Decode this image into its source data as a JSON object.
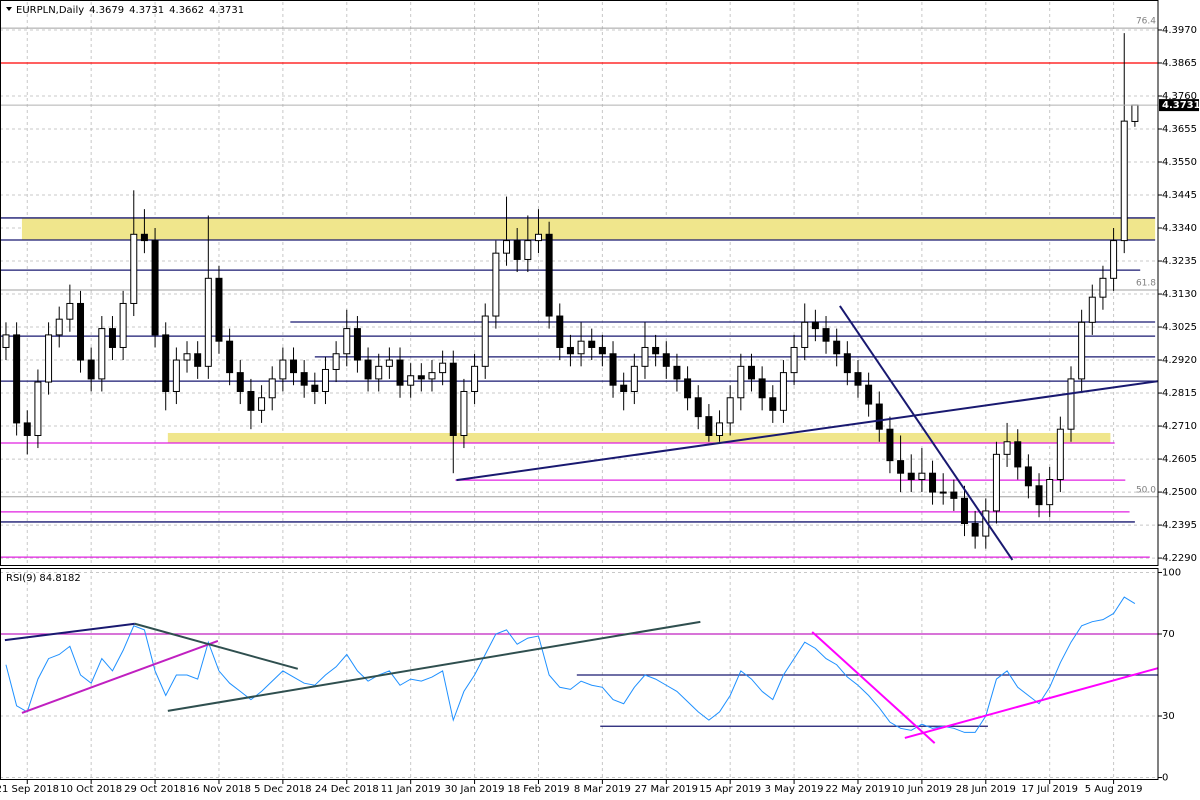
{
  "chart_data": [
    {
      "type": "candlestick",
      "title": "EURPLN,Daily",
      "categories": [
        null,
        null,
        "21 Sep 2018",
        null,
        null,
        null,
        null,
        null,
        "10 Oct 2018",
        null,
        null,
        null,
        null,
        null,
        "29 Oct 2018",
        null,
        null,
        null,
        null,
        null,
        "16 Nov 2018",
        null,
        null,
        null,
        null,
        null,
        "5 Dec 2018",
        null,
        null,
        null,
        null,
        null,
        "24 Dec 2018",
        null,
        null,
        null,
        null,
        null,
        "11 Jan 2019",
        null,
        null,
        null,
        null,
        null,
        "30 Jan 2019",
        null,
        null,
        null,
        null,
        null,
        "18 Feb 2019",
        null,
        null,
        null,
        null,
        null,
        "8 Mar 2019",
        null,
        null,
        null,
        null,
        null,
        "27 Mar 2019",
        null,
        null,
        null,
        null,
        null,
        "15 Apr 2019",
        null,
        null,
        null,
        null,
        null,
        "3 May 2019",
        null,
        null,
        null,
        null,
        null,
        "22 May 2019",
        null,
        null,
        null,
        null,
        null,
        "10 Jun 2019",
        null,
        null,
        null,
        null,
        null,
        "28 Jun 2019",
        null,
        null,
        null,
        null,
        null,
        "17 Jul 2019",
        null,
        null,
        null,
        null,
        null,
        "5 Aug 2019",
        null,
        null
      ],
      "open": [
        4.296,
        4.3,
        4.272,
        4.268,
        4.285,
        4.3,
        4.305,
        4.31,
        4.292,
        4.286,
        4.302,
        4.296,
        4.31,
        4.332,
        4.33,
        4.3,
        4.282,
        4.292,
        4.294,
        4.29,
        4.318,
        4.298,
        4.288,
        4.282,
        4.276,
        4.28,
        4.286,
        4.292,
        4.288,
        4.284,
        4.282,
        4.289,
        4.294,
        4.302,
        4.292,
        4.286,
        4.29,
        4.292,
        4.284,
        4.287,
        4.286,
        4.288,
        4.291,
        4.268,
        4.282,
        4.29,
        4.306,
        4.326,
        4.33,
        4.324,
        4.33,
        4.332,
        4.306,
        4.296,
        4.294,
        4.298,
        4.296,
        4.294,
        4.284,
        4.282,
        4.29,
        4.296,
        4.294,
        4.29,
        4.286,
        4.28,
        4.274,
        4.268,
        4.272,
        4.28,
        4.29,
        4.286,
        4.28,
        4.276,
        4.288,
        4.296,
        4.304,
        4.302,
        4.298,
        4.294,
        4.288,
        4.284,
        4.278,
        4.27,
        4.26,
        4.256,
        4.254,
        4.256,
        4.25,
        4.25,
        4.248,
        4.24,
        4.236,
        4.244,
        4.262,
        4.266,
        4.258,
        4.252,
        4.246,
        4.254,
        4.27,
        4.286,
        4.304,
        4.312,
        4.318,
        4.33,
        4.3679
      ],
      "high": [
        4.304,
        4.304,
        4.276,
        4.289,
        4.304,
        4.309,
        4.316,
        4.314,
        4.296,
        4.306,
        4.306,
        4.314,
        4.346,
        4.34,
        4.334,
        4.304,
        4.296,
        4.298,
        4.298,
        4.338,
        4.322,
        4.302,
        4.292,
        4.286,
        4.284,
        4.29,
        4.296,
        4.296,
        4.292,
        4.288,
        4.293,
        4.298,
        4.308,
        4.306,
        4.296,
        4.294,
        4.296,
        4.296,
        4.291,
        4.291,
        4.292,
        4.295,
        4.295,
        4.286,
        4.294,
        4.31,
        4.33,
        4.344,
        4.334,
        4.338,
        4.34,
        4.336,
        4.31,
        4.3,
        4.304,
        4.302,
        4.3,
        4.298,
        4.288,
        4.294,
        4.304,
        4.3,
        4.298,
        4.294,
        4.29,
        4.284,
        4.278,
        4.276,
        4.284,
        4.294,
        4.294,
        4.29,
        4.284,
        4.292,
        4.3,
        4.31,
        4.308,
        4.306,
        4.302,
        4.298,
        4.292,
        4.288,
        4.282,
        4.274,
        4.268,
        4.262,
        4.264,
        4.26,
        4.256,
        4.254,
        4.252,
        4.244,
        4.248,
        4.266,
        4.272,
        4.27,
        4.262,
        4.256,
        4.258,
        4.274,
        4.29,
        4.308,
        4.316,
        4.322,
        4.334,
        4.396,
        4.3731
      ],
      "low": [
        4.292,
        4.268,
        4.262,
        4.264,
        4.281,
        4.296,
        4.301,
        4.288,
        4.282,
        4.282,
        4.292,
        4.292,
        4.306,
        4.326,
        4.296,
        4.276,
        4.278,
        4.288,
        4.286,
        4.286,
        4.294,
        4.284,
        4.278,
        4.27,
        4.272,
        4.276,
        4.282,
        4.284,
        4.28,
        4.278,
        4.278,
        4.285,
        4.29,
        4.288,
        4.282,
        4.282,
        4.286,
        4.28,
        4.28,
        4.282,
        4.282,
        4.284,
        4.256,
        4.264,
        4.278,
        4.286,
        4.302,
        4.322,
        4.32,
        4.32,
        4.326,
        4.302,
        4.292,
        4.29,
        4.29,
        4.292,
        4.29,
        4.28,
        4.276,
        4.278,
        4.286,
        4.29,
        4.286,
        4.282,
        4.276,
        4.27,
        4.266,
        4.266,
        4.268,
        4.276,
        4.282,
        4.276,
        4.272,
        4.272,
        4.284,
        4.292,
        4.298,
        4.294,
        4.29,
        4.284,
        4.28,
        4.274,
        4.266,
        4.256,
        4.25,
        4.25,
        4.25,
        4.246,
        4.246,
        4.244,
        4.236,
        4.232,
        4.232,
        4.24,
        4.258,
        4.254,
        4.248,
        4.242,
        4.242,
        4.25,
        4.266,
        4.282,
        4.3,
        4.308,
        4.314,
        4.326,
        4.3662
      ],
      "close": [
        4.3,
        4.272,
        4.268,
        4.285,
        4.3,
        4.305,
        4.31,
        4.292,
        4.286,
        4.302,
        4.296,
        4.31,
        4.332,
        4.33,
        4.3,
        4.282,
        4.292,
        4.294,
        4.29,
        4.318,
        4.298,
        4.288,
        4.282,
        4.276,
        4.28,
        4.286,
        4.292,
        4.288,
        4.284,
        4.282,
        4.289,
        4.294,
        4.302,
        4.292,
        4.286,
        4.29,
        4.292,
        4.284,
        4.287,
        4.286,
        4.288,
        4.291,
        4.268,
        4.282,
        4.29,
        4.306,
        4.326,
        4.33,
        4.324,
        4.33,
        4.332,
        4.306,
        4.296,
        4.294,
        4.298,
        4.296,
        4.294,
        4.284,
        4.282,
        4.29,
        4.296,
        4.294,
        4.29,
        4.286,
        4.28,
        4.274,
        4.268,
        4.272,
        4.28,
        4.29,
        4.286,
        4.28,
        4.276,
        4.288,
        4.296,
        4.304,
        4.302,
        4.298,
        4.294,
        4.288,
        4.284,
        4.278,
        4.27,
        4.26,
        4.256,
        4.254,
        4.256,
        4.25,
        4.25,
        4.248,
        4.24,
        4.236,
        4.244,
        4.262,
        4.266,
        4.258,
        4.252,
        4.246,
        4.254,
        4.27,
        4.286,
        4.304,
        4.312,
        4.318,
        4.33,
        4.368,
        4.3731
      ],
      "up_color": "#ffffff",
      "down_color": "#000000",
      "wick_color": "#000000",
      "xlim": [
        -0.56,
        108.17
      ],
      "ylim": [
        4.2268,
        4.4059
      ],
      "yticks": [
        {
          "value": 4.397,
          "label": "4.3970"
        },
        4.3865,
        {
          "value": 4.376,
          "label": "4.3760"
        },
        4.3655,
        {
          "value": 4.355,
          "label": "4.3550"
        },
        4.3445,
        {
          "value": 4.334,
          "label": "4.3340"
        },
        4.3235,
        {
          "value": 4.313,
          "label": "4.3130"
        },
        4.3025,
        {
          "value": 4.292,
          "label": "4.2920"
        },
        4.2815,
        {
          "value": 4.271,
          "label": "4.2710"
        },
        4.2605,
        {
          "value": 4.25,
          "label": "4.2500"
        },
        4.2395,
        {
          "value": 4.229,
          "label": "4.2290"
        }
      ],
      "grid": true,
      "zones": [
        {
          "low": 4.3302,
          "high": 4.3372,
          "from": 1.5,
          "to": 107.9,
          "color": "#f0e68c"
        },
        {
          "low": 4.2656,
          "high": 4.2688,
          "from": 15.2,
          "to": 103.7,
          "color": "#f0e68c"
        }
      ],
      "levels": [
        {
          "value": 4.3865,
          "color": "#ff0000",
          "from": -0.56,
          "to": 108.17
        },
        {
          "value": 4.3372,
          "color": "#191970",
          "from": -0.56,
          "to": 107.9
        },
        {
          "value": 4.3302,
          "color": "#191970",
          "from": -0.56,
          "to": 107.9
        },
        {
          "value": 4.3206,
          "color": "#191970",
          "from": -0.56,
          "to": 106.5
        },
        {
          "value": 4.3041,
          "color": "#191970",
          "from": 26.7,
          "to": 107.9
        },
        {
          "value": 4.2996,
          "color": "#191970",
          "from": -0.56,
          "to": 107.9
        },
        {
          "value": 4.293,
          "color": "#191970",
          "from": 29,
          "to": 107.9
        },
        {
          "value": 4.2853,
          "color": "#191970",
          "from": -0.56,
          "to": 108.17
        },
        {
          "value": 4.2656,
          "color": "#e020e0",
          "from": -0.56,
          "to": 104.1
        },
        {
          "value": 4.2538,
          "color": "#e020e0",
          "from": 42.2,
          "to": 105.1
        },
        {
          "value": 4.2437,
          "color": "#e020e0",
          "from": -0.56,
          "to": 105.5
        },
        {
          "value": 4.2405,
          "color": "#191970",
          "from": -0.56,
          "to": 106
        },
        {
          "value": 4.2293,
          "color": "#e020e0",
          "from": -0.56,
          "to": 107.4
        }
      ],
      "fib_levels": [
        {
          "level": "76.4",
          "value": 4.3976
        },
        {
          "level": "61.8",
          "value": 4.3143
        },
        {
          "level": "50.0",
          "value": 4.2485
        }
      ],
      "trendlines": [
        {
          "points": [
            [
              42.3,
              4.2538
            ],
            [
              108.2,
              4.2853
            ]
          ],
          "color": "#191970"
        },
        {
          "points": [
            [
              78.3,
              4.3092
            ],
            [
              94.5,
              4.2284
            ]
          ],
          "color": "#191970"
        }
      ]
    },
    {
      "type": "line",
      "title": "RSI(9)",
      "color": "#1e90ff",
      "values": [
        55,
        35,
        32,
        48,
        58,
        60,
        64,
        50,
        46,
        58,
        52,
        62,
        74,
        72,
        52,
        40,
        50,
        50,
        48,
        66,
        52,
        46,
        42,
        38,
        42,
        47,
        52,
        49,
        46,
        45,
        50,
        54,
        60,
        52,
        47,
        50,
        52,
        45,
        48,
        47,
        49,
        52,
        28,
        42,
        50,
        60,
        70,
        72,
        65,
        68,
        69,
        50,
        44,
        43,
        47,
        45,
        44,
        38,
        36,
        44,
        50,
        48,
        45,
        42,
        37,
        32,
        28,
        32,
        40,
        52,
        48,
        42,
        38,
        50,
        58,
        66,
        63,
        58,
        55,
        49,
        45,
        40,
        34,
        27,
        24,
        23,
        26,
        24,
        25,
        24,
        22,
        22,
        30,
        48,
        52,
        44,
        40,
        36,
        44,
        56,
        66,
        74,
        76,
        77,
        80,
        88,
        84.8182
      ],
      "xlim": [
        -0.56,
        108.17
      ],
      "ylim": [
        -1.2,
        101.2
      ],
      "yticks": [
        100,
        70,
        30,
        0
      ],
      "grid": true,
      "levels": [
        {
          "value": 70,
          "color": "#c020c0",
          "from": -0.56,
          "to": 108.17
        },
        {
          "value": 50,
          "color": "#191970",
          "from": 53.6,
          "to": 108.17
        },
        {
          "value": 25,
          "color": "#191970",
          "from": 55.8,
          "to": 92.2
        }
      ],
      "trendlines": [
        {
          "points": [
            [
              -0.1,
              67
            ],
            [
              12.1,
              75
            ]
          ],
          "color": "#191970"
        },
        {
          "points": [
            [
              1.5,
              31.5
            ],
            [
              19.9,
              66.6
            ]
          ],
          "color": "#c020c0"
        },
        {
          "points": [
            [
              12.1,
              75
            ],
            [
              27.4,
              53
            ]
          ],
          "color": "#2f4f4f"
        },
        {
          "points": [
            [
              15.2,
              32.5
            ],
            [
              65.2,
              75.9
            ]
          ],
          "color": "#2f4f4f"
        },
        {
          "points": [
            [
              75.7,
              71
            ],
            [
              87.2,
              16.8
            ]
          ],
          "color": "#ff00ff"
        },
        {
          "points": [
            [
              84.4,
              19.3
            ],
            [
              108.2,
              53.4
            ]
          ],
          "color": "#ff00ff"
        }
      ]
    }
  ]
}
